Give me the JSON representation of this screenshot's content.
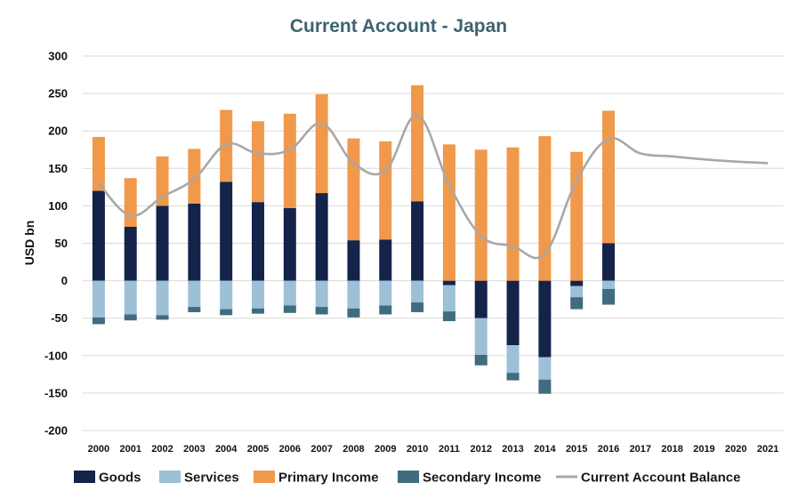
{
  "chart_data": {
    "type": "bar",
    "title": "Current Account - Japan",
    "ylabel": "USD bn",
    "xlabel": "",
    "ylim": [
      -200,
      300
    ],
    "yticks": [
      300,
      250,
      200,
      150,
      100,
      50,
      0,
      -50,
      -100,
      -150,
      -200
    ],
    "grid": true,
    "legend_position": "bottom",
    "categories": [
      "2000",
      "2001",
      "2002",
      "2003",
      "2004",
      "2005",
      "2006",
      "2007",
      "2008",
      "2009",
      "2010",
      "2011",
      "2012",
      "2013",
      "2014",
      "2015",
      "2016",
      "2017",
      "2018",
      "2019",
      "2020",
      "2021"
    ],
    "series": [
      {
        "name": "Goods",
        "kind": "bar",
        "color": "#14234a",
        "values": [
          120,
          72,
          100,
          103,
          132,
          105,
          97,
          117,
          54,
          55,
          106,
          -6,
          -50,
          -86,
          -102,
          -7,
          50,
          null,
          null,
          null,
          null,
          null
        ]
      },
      {
        "name": "Services",
        "kind": "bar",
        "color": "#9dc0d6",
        "values": [
          -49,
          -45,
          -46,
          -35,
          -38,
          -37,
          -33,
          -35,
          -37,
          -33,
          -29,
          -35,
          -49,
          -37,
          -30,
          -15,
          -11,
          null,
          null,
          null,
          null,
          null
        ]
      },
      {
        "name": "Primary Income",
        "kind": "bar",
        "color": "#f0994a",
        "values": [
          72,
          65,
          66,
          73,
          96,
          108,
          126,
          132,
          136,
          131,
          155,
          182,
          175,
          178,
          193,
          172,
          177,
          null,
          null,
          null,
          null,
          null
        ]
      },
      {
        "name": "Secondary Income",
        "kind": "bar",
        "color": "#3f6c80",
        "values": [
          -9,
          -8,
          -6,
          -7,
          -8,
          -7,
          -10,
          -10,
          -12,
          -12,
          -13,
          -13,
          -14,
          -10,
          -19,
          -16,
          -21,
          null,
          null,
          null,
          null,
          null
        ]
      },
      {
        "name": "Current Account Balance",
        "kind": "line",
        "color": "#a8a8a8",
        "values": [
          130,
          87,
          112,
          136,
          182,
          170,
          175,
          210,
          157,
          147,
          221,
          128,
          60,
          46,
          36,
          134,
          189,
          170,
          166,
          162,
          159,
          157
        ]
      }
    ]
  }
}
